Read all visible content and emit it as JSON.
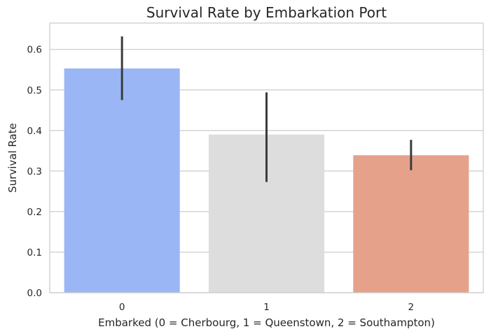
{
  "chart_data": {
    "type": "bar",
    "title": "Survival Rate by Embarkation Port",
    "xlabel": "Embarked (0 = Cherbourg, 1 = Queenstown, 2 = Southampton)",
    "ylabel": "Survival Rate",
    "categories": [
      "0",
      "1",
      "2"
    ],
    "values": [
      0.553,
      0.39,
      0.339
    ],
    "error_bars": [
      [
        0.475,
        0.632
      ],
      [
        0.273,
        0.494
      ],
      [
        0.302,
        0.377
      ]
    ],
    "colors": [
      "#9ab6f4",
      "#dddddd",
      "#e6a18b"
    ],
    "error_color": "#3c3c3c",
    "ylim": [
      0,
      0.665
    ],
    "yticks": [
      0.0,
      0.1,
      0.2,
      0.3,
      0.4,
      0.5,
      0.6
    ],
    "ytick_labels": [
      "0.0",
      "0.1",
      "0.2",
      "0.3",
      "0.4",
      "0.5",
      "0.6"
    ],
    "grid": true,
    "legend": "none"
  }
}
